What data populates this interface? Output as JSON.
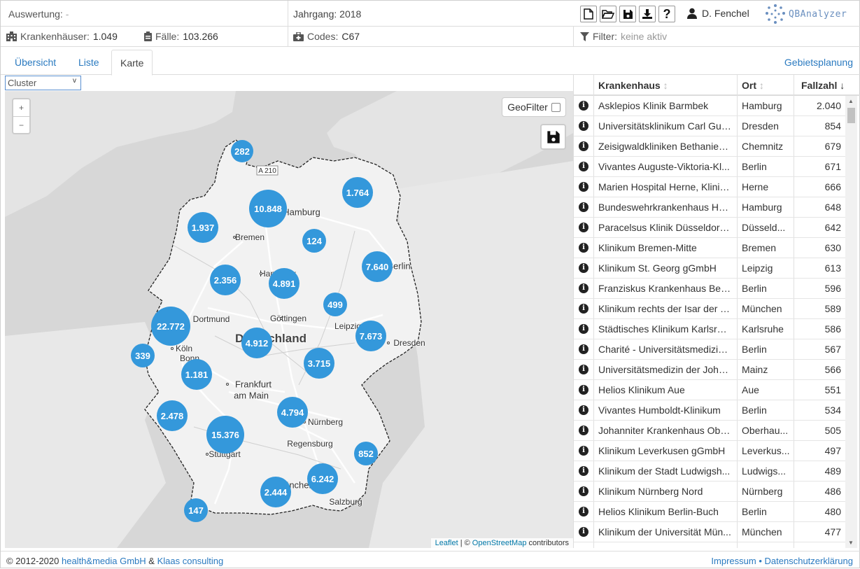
{
  "header": {
    "evaluation_label": "Auswertung:",
    "evaluation_value": "-",
    "year": "Jahrgang: 2018",
    "user_name": "D. Fenchel",
    "logo_text": "QBAnalyzer"
  },
  "toolbar": {
    "icons": [
      "new-file-icon",
      "open-folder-icon",
      "save-icon",
      "download-icon",
      "help-icon"
    ]
  },
  "stats": {
    "hospitals_label": "Krankenhäuser:",
    "hospitals_value": "1.049",
    "cases_label": "Fälle:",
    "cases_value": "103.266",
    "codes_label": "Codes:",
    "codes_value": "C67",
    "filter_label": "Filter:",
    "filter_value": "keine aktiv"
  },
  "tabs": [
    {
      "label": "Übersicht",
      "active": false
    },
    {
      "label": "Liste",
      "active": false
    },
    {
      "label": "Karte",
      "active": true
    }
  ],
  "area_planning_link": "Gebietsplanung",
  "map": {
    "mode_select": "Cluster",
    "geofilter_label": "GeoFilter",
    "attribution_leaflet": "Leaflet",
    "attribution_sep": "| ©",
    "attribution_osm": "OpenStreetMap",
    "attribution_contrib": "contributors",
    "road_label": "A 210",
    "country_label": "Deutschland",
    "clusters": [
      "282",
      "1.764",
      "10.848",
      "1.937",
      "124",
      "7.640",
      "2.356",
      "4.891",
      "499",
      "22.772",
      "7.673",
      "4.912",
      "339",
      "3.715",
      "1.181",
      "2.478",
      "4.794",
      "15.376",
      "852",
      "6.242",
      "2.444",
      "147"
    ],
    "cities": [
      "Hamburg",
      "Bremen",
      "Hannover",
      "Berlin",
      "Dortmund",
      "Göttingen",
      "Leipzig",
      "Dresden",
      "Köln",
      "Bonn",
      "Frankfurt",
      "am Main",
      "Nürnberg",
      "Regensburg",
      "Stuttgart",
      "München",
      "Salzburg"
    ]
  },
  "table": {
    "headers": {
      "hospital": "Krankenhaus",
      "city": "Ort",
      "cases": "Fallzahl"
    },
    "rows": [
      {
        "hospital": "Asklepios Klinik Barmbek",
        "city": "Hamburg",
        "cases": "2.040"
      },
      {
        "hospital": "Universitätsklinikum Carl Gus...",
        "city": "Dresden",
        "cases": "854"
      },
      {
        "hospital": "Zeisigwaldkliniken Bethanien...",
        "city": "Chemnitz",
        "cases": "679"
      },
      {
        "hospital": "Vivantes Auguste-Viktoria-Kl...",
        "city": "Berlin",
        "cases": "671"
      },
      {
        "hospital": "Marien Hospital Herne, Klinik...",
        "city": "Herne",
        "cases": "666"
      },
      {
        "hospital": "Bundeswehrkrankenhaus Ha...",
        "city": "Hamburg",
        "cases": "648"
      },
      {
        "hospital": "Paracelsus Klinik Düsseldorf ...",
        "city": "Düsseld...",
        "cases": "642"
      },
      {
        "hospital": "Klinikum Bremen-Mitte",
        "city": "Bremen",
        "cases": "630"
      },
      {
        "hospital": "Klinikum St. Georg gGmbH",
        "city": "Leipzig",
        "cases": "613"
      },
      {
        "hospital": "Franziskus Krankenhaus Berlin",
        "city": "Berlin",
        "cases": "596"
      },
      {
        "hospital": "Klinikum rechts der Isar der T...",
        "city": "München",
        "cases": "589"
      },
      {
        "hospital": "Städtisches Klinikum Karlsruhe",
        "city": "Karlsruhe",
        "cases": "586"
      },
      {
        "hospital": "Charité - Universitätsmedizin...",
        "city": "Berlin",
        "cases": "567"
      },
      {
        "hospital": "Universitätsmedizin der Joha...",
        "city": "Mainz",
        "cases": "566"
      },
      {
        "hospital": "Helios Klinikum Aue",
        "city": "Aue",
        "cases": "551"
      },
      {
        "hospital": "Vivantes Humboldt-Klinikum",
        "city": "Berlin",
        "cases": "534"
      },
      {
        "hospital": "Johanniter Krankenhaus Obe...",
        "city": "Oberhau...",
        "cases": "505"
      },
      {
        "hospital": "Klinikum Leverkusen gGmbH",
        "city": "Leverkus...",
        "cases": "497"
      },
      {
        "hospital": "Klinikum der Stadt Ludwigsh...",
        "city": "Ludwigs...",
        "cases": "489"
      },
      {
        "hospital": "Klinikum Nürnberg Nord",
        "city": "Nürnberg",
        "cases": "486"
      },
      {
        "hospital": "Helios Klinikum Berlin-Buch",
        "city": "Berlin",
        "cases": "480"
      },
      {
        "hospital": "Klinikum der Universität Mün...",
        "city": "München",
        "cases": "477"
      }
    ]
  },
  "footer": {
    "copyright": "© 2012-2020",
    "company1": "health&media GmbH",
    "amp": "&",
    "company2": "Klaas consulting",
    "impressum": "Impressum",
    "sep": "•",
    "privacy": "Datenschutzerklärung"
  }
}
